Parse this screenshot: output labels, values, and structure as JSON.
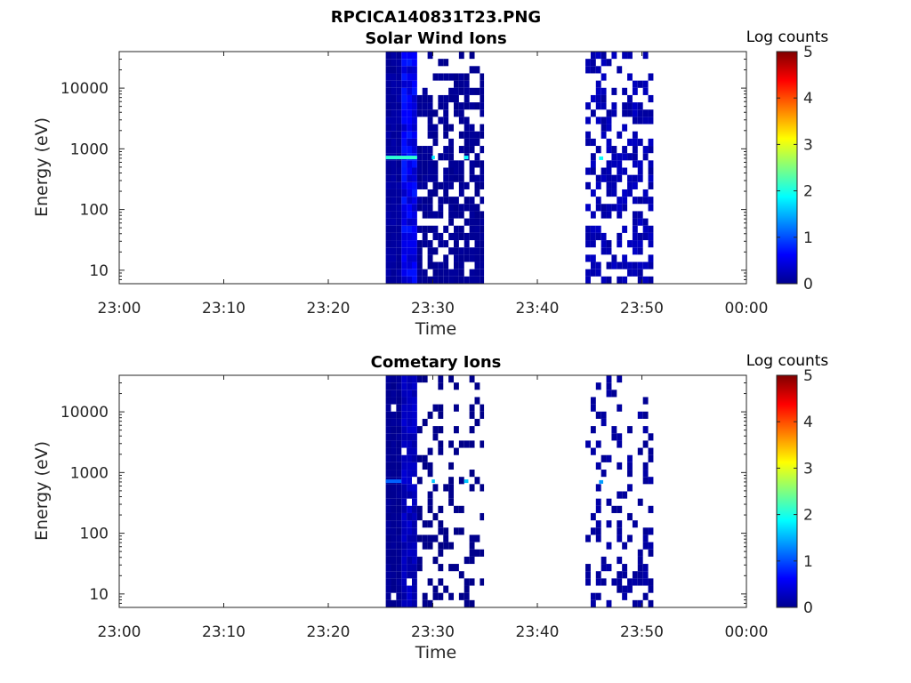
{
  "figure_title": "RPCICA140831T23.PNG",
  "colorbar": {
    "label": "Log counts",
    "ticks": [
      "0",
      "1",
      "2",
      "3",
      "4",
      "5"
    ],
    "range": [
      0,
      5
    ],
    "colormap": "jet"
  },
  "chart_data": [
    {
      "type": "heatmap",
      "title": "Solar Wind Ions",
      "xlabel": "Time",
      "ylabel": "Energy (eV)",
      "x_ticks": [
        "23:00",
        "23:10",
        "23:20",
        "23:30",
        "23:40",
        "23:50",
        "00:00"
      ],
      "x_range_min": [
        0,
        60
      ],
      "y_ticks": [
        "10",
        "100",
        "1000",
        "10000"
      ],
      "y_scale": "log",
      "y_range": [
        6,
        40000
      ],
      "clim": [
        0,
        5
      ],
      "intervals": [
        {
          "start_min": 25.5,
          "end_min": 34.9,
          "profile": [
            {
              "t0": 25.5,
              "t1": 27.0,
              "density": 1.0,
              "level": 0.15
            },
            {
              "t0": 27.0,
              "t1": 28.5,
              "density": 1.0,
              "level": 0.55
            },
            {
              "t0": 28.5,
              "t1": 34.9,
              "density": 0.6,
              "level": 0.1
            }
          ]
        },
        {
          "start_min": 44.6,
          "end_min": 51.1,
          "profile": [
            {
              "t0": 44.6,
              "t1": 51.1,
              "density": 0.45,
              "level": 0.25
            }
          ]
        }
      ],
      "features": [
        {
          "t0": 25.5,
          "t1": 28.5,
          "energy_ev": 720,
          "level": 2.1
        },
        {
          "t0": 29.9,
          "t1": 30.2,
          "energy_ev": 720,
          "level": 1.8
        },
        {
          "t0": 33.0,
          "t1": 33.4,
          "energy_ev": 720,
          "level": 1.9
        },
        {
          "t0": 45.9,
          "t1": 46.3,
          "energy_ev": 700,
          "level": 1.9
        }
      ]
    },
    {
      "type": "heatmap",
      "title": "Cometary Ions",
      "xlabel": "Time",
      "ylabel": "Energy (eV)",
      "x_ticks": [
        "23:00",
        "23:10",
        "23:20",
        "23:30",
        "23:40",
        "23:50",
        "00:00"
      ],
      "x_range_min": [
        0,
        60
      ],
      "y_ticks": [
        "10",
        "100",
        "1000",
        "10000"
      ],
      "y_scale": "log",
      "y_range": [
        6,
        40000
      ],
      "clim": [
        0,
        5
      ],
      "intervals": [
        {
          "start_min": 25.5,
          "end_min": 34.9,
          "profile": [
            {
              "t0": 25.5,
              "t1": 27.0,
              "density": 0.95,
              "level": 0.1
            },
            {
              "t0": 27.0,
              "t1": 28.5,
              "density": 0.95,
              "level": 0.3
            },
            {
              "t0": 28.5,
              "t1": 34.9,
              "density": 0.28,
              "level": 0.05
            }
          ]
        },
        {
          "start_min": 44.6,
          "end_min": 51.1,
          "profile": [
            {
              "t0": 44.6,
              "t1": 51.1,
              "density": 0.25,
              "level": 0.15
            }
          ]
        }
      ],
      "features": [
        {
          "t0": 25.5,
          "t1": 27.0,
          "energy_ev": 720,
          "level": 1.1
        },
        {
          "t0": 29.9,
          "t1": 30.2,
          "energy_ev": 720,
          "level": 1.6
        },
        {
          "t0": 33.0,
          "t1": 33.4,
          "energy_ev": 720,
          "level": 1.6
        },
        {
          "t0": 45.9,
          "t1": 46.3,
          "energy_ev": 700,
          "level": 1.4
        }
      ]
    }
  ]
}
